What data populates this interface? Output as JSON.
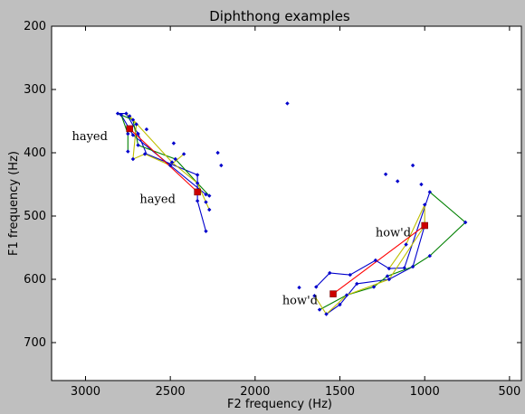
{
  "chart_data": {
    "type": "scatter",
    "title": "Diphthong examples",
    "xlabel": "F2 frequency (Hz)",
    "ylabel": "F1 frequency (Hz)",
    "xlim": [
      3200,
      430
    ],
    "ylim": [
      760,
      200
    ],
    "x_ticks": [
      3000,
      2500,
      2000,
      1500,
      1000,
      500
    ],
    "y_ticks": [
      200,
      300,
      400,
      500,
      600,
      700
    ],
    "grid": false,
    "colors": {
      "points": "#0000cc",
      "trajectory_blue": "#0000cc",
      "trajectory_green": "#008000",
      "trajectory_yellow": "#bfbf00",
      "mean_line": "#ff0000",
      "mean_marker": "#cc0000"
    },
    "points": [
      [
        2810,
        338
      ],
      [
        2790,
        340
      ],
      [
        2760,
        338
      ],
      [
        2740,
        342
      ],
      [
        2720,
        348
      ],
      [
        2700,
        355
      ],
      [
        2690,
        370
      ],
      [
        2750,
        370
      ],
      [
        2720,
        372
      ],
      [
        2640,
        363
      ],
      [
        2690,
        388
      ],
      [
        2750,
        398
      ],
      [
        2720,
        410
      ],
      [
        2650,
        402
      ],
      [
        2480,
        385
      ],
      [
        2420,
        402
      ],
      [
        2470,
        410
      ],
      [
        2490,
        415
      ],
      [
        2500,
        420
      ],
      [
        2340,
        435
      ],
      [
        2340,
        448
      ],
      [
        2220,
        400
      ],
      [
        2200,
        420
      ],
      [
        2290,
        466
      ],
      [
        2270,
        468
      ],
      [
        2290,
        478
      ],
      [
        2270,
        490
      ],
      [
        2340,
        476
      ],
      [
        2290,
        524
      ],
      [
        1810,
        322
      ],
      [
        1230,
        434
      ],
      [
        1160,
        445
      ],
      [
        1070,
        420
      ],
      [
        1020,
        450
      ],
      [
        1000,
        482
      ],
      [
        970,
        462
      ],
      [
        760,
        510
      ],
      [
        970,
        563
      ],
      [
        1000,
        515
      ],
      [
        1110,
        545
      ],
      [
        1120,
        582
      ],
      [
        1070,
        580
      ],
      [
        1210,
        583
      ],
      [
        1290,
        570
      ],
      [
        1440,
        593
      ],
      [
        1560,
        590
      ],
      [
        1220,
        595
      ],
      [
        1210,
        600
      ],
      [
        1300,
        612
      ],
      [
        1400,
        607
      ],
      [
        1640,
        612
      ],
      [
        1740,
        613
      ],
      [
        1650,
        626
      ],
      [
        1620,
        648
      ],
      [
        1580,
        655
      ],
      [
        1500,
        640
      ],
      [
        1460,
        625
      ]
    ],
    "segments": [
      {
        "color": "blue",
        "points": [
          [
            2810,
            338
          ],
          [
            2760,
            338
          ],
          [
            2690,
            370
          ],
          [
            2640,
            402
          ],
          [
            2340,
            435
          ],
          [
            2340,
            476
          ],
          [
            2290,
            524
          ]
        ]
      },
      {
        "color": "blue",
        "points": [
          [
            2790,
            340
          ],
          [
            2720,
            372
          ],
          [
            2500,
            420
          ],
          [
            2290,
            466
          ]
        ]
      },
      {
        "color": "green",
        "points": [
          [
            2790,
            340
          ],
          [
            2750,
            370
          ],
          [
            2750,
            398
          ]
        ]
      },
      {
        "color": "green",
        "points": [
          [
            2810,
            338
          ],
          [
            2720,
            348
          ],
          [
            2690,
            388
          ],
          [
            2470,
            410
          ],
          [
            2340,
            448
          ],
          [
            2270,
            468
          ]
        ]
      },
      {
        "color": "yellow",
        "points": [
          [
            2760,
            338
          ],
          [
            2700,
            355
          ],
          [
            2720,
            410
          ],
          [
            2650,
            402
          ],
          [
            2500,
            420
          ],
          [
            2420,
            402
          ]
        ]
      },
      {
        "color": "yellow",
        "points": [
          [
            2740,
            342
          ],
          [
            2490,
            415
          ],
          [
            2340,
            448
          ],
          [
            2270,
            490
          ]
        ]
      },
      {
        "color": "blue",
        "points": [
          [
            1640,
            612
          ],
          [
            1560,
            590
          ],
          [
            1440,
            593
          ],
          [
            1290,
            570
          ],
          [
            1210,
            583
          ],
          [
            1120,
            582
          ],
          [
            970,
            462
          ]
        ]
      },
      {
        "color": "blue",
        "points": [
          [
            1580,
            655
          ],
          [
            1500,
            640
          ],
          [
            1400,
            607
          ],
          [
            1210,
            600
          ],
          [
            1070,
            580
          ],
          [
            1000,
            515
          ]
        ]
      },
      {
        "color": "green",
        "points": [
          [
            1620,
            648
          ],
          [
            1460,
            625
          ],
          [
            1300,
            612
          ],
          [
            1220,
            595
          ],
          [
            1070,
            580
          ],
          [
            970,
            563
          ],
          [
            760,
            510
          ],
          [
            970,
            462
          ]
        ]
      },
      {
        "color": "yellow",
        "points": [
          [
            1650,
            626
          ],
          [
            1580,
            655
          ],
          [
            1460,
            625
          ],
          [
            1210,
            600
          ],
          [
            1000,
            515
          ]
        ]
      },
      {
        "color": "yellow",
        "points": [
          [
            1210,
            583
          ],
          [
            1110,
            545
          ],
          [
            1000,
            482
          ],
          [
            1000,
            515
          ]
        ]
      }
    ],
    "means": [
      {
        "label": "hayed",
        "start": [
          2740,
          362
        ],
        "end": [
          2340,
          462
        ]
      },
      {
        "label": "how'd",
        "start": [
          1540,
          623
        ],
        "end": [
          1000,
          515
        ]
      }
    ],
    "annotations": [
      {
        "text": "hayed",
        "x": 3080,
        "y": 375
      },
      {
        "text": "hayed",
        "x": 2680,
        "y": 474
      },
      {
        "text": "how'd",
        "x": 1290,
        "y": 527
      },
      {
        "text": "how'd",
        "x": 1840,
        "y": 634
      }
    ]
  }
}
